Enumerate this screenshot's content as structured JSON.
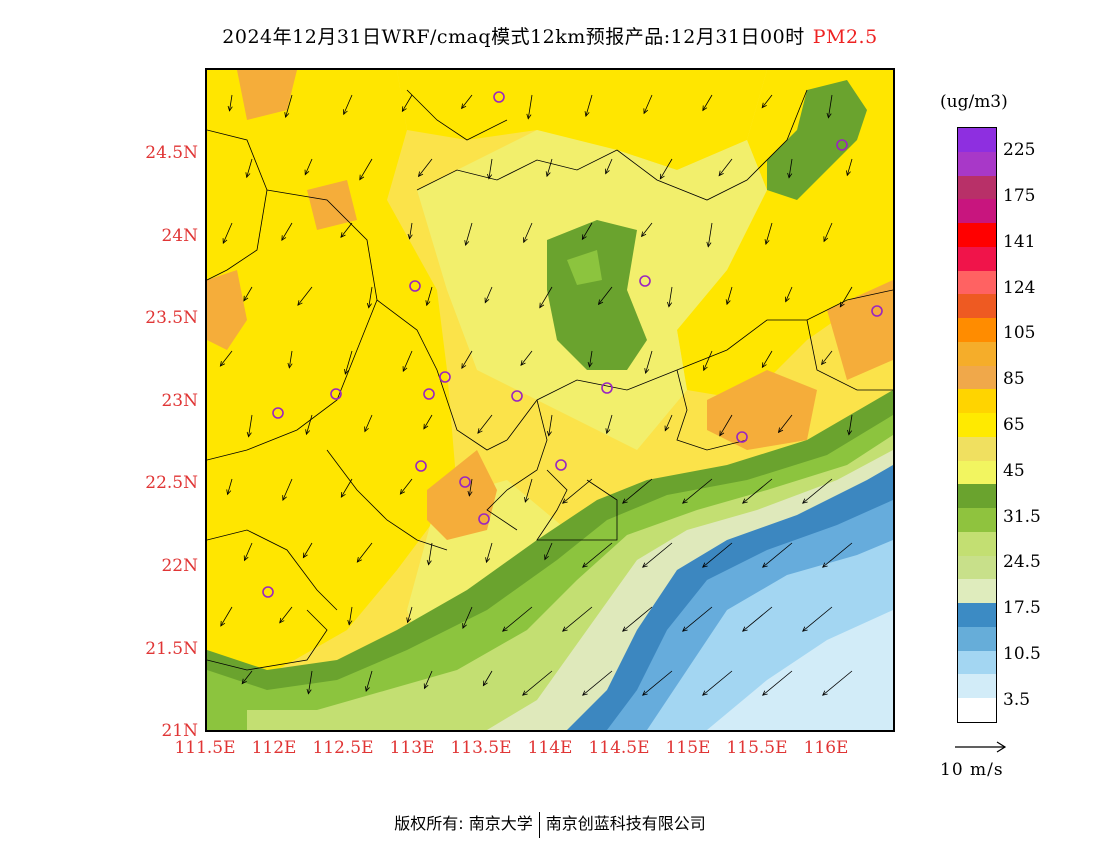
{
  "title": {
    "main": "2024年12月31日WRF/cmaq模式12km预报产品:12月31日00时",
    "variable": "PM2.5"
  },
  "axes": {
    "lat_labels": [
      "24.5N",
      "24N",
      "23.5N",
      "23N",
      "22.5N",
      "22N",
      "21.5N",
      "21N"
    ],
    "lon_labels": [
      "111.5E",
      "112E",
      "112.5E",
      "113E",
      "113.5E",
      "114E",
      "114.5E",
      "115E",
      "115.5E",
      "116E"
    ]
  },
  "colorbar": {
    "unit": "(ug/m3)",
    "labels": [
      "225",
      "175",
      "141",
      "124",
      "105",
      "85",
      "65",
      "45",
      "31.5",
      "24.5",
      "17.5",
      "10.5",
      "3.5"
    ],
    "colors_top_to_bottom": [
      "#8e2fe0",
      "#a838c8",
      "#b83068",
      "#c8157e",
      "#ff0000",
      "#f0144a",
      "#ff6262",
      "#ee5a22",
      "#ff8c00",
      "#f5ad2a",
      "#f0a84a",
      "#ffd400",
      "#ffea00",
      "#f0e060",
      "#f2f560",
      "#6aa32e",
      "#8fc33e",
      "#c3df72",
      "#c8e08a",
      "#dfecbd",
      "#3c8bc4",
      "#66add9",
      "#a3d6f2",
      "#d2ecf8",
      "#ffffff"
    ]
  },
  "wind_reference": {
    "label": "10 m/s"
  },
  "footer": {
    "left": "版权所有: 南京大学",
    "right": "南京创蓝科技有限公司"
  },
  "map": {
    "colors": {
      "background": "#fbe34a",
      "yellow_bright": "#ffe600",
      "yellow_light": "#f2ef6c",
      "orange": "#f5ad3a",
      "green_dark": "#6aa32e",
      "green_mid": "#8cc43e",
      "green_light": "#c3df72",
      "green_pale": "#dfe9bb",
      "blue_dark": "#3c87c0",
      "blue_mid": "#66acdc",
      "blue_light": "#a3d6f2",
      "blue_pale": "#d2ecf8",
      "station": "#9a25c0",
      "border": "#000000"
    }
  }
}
